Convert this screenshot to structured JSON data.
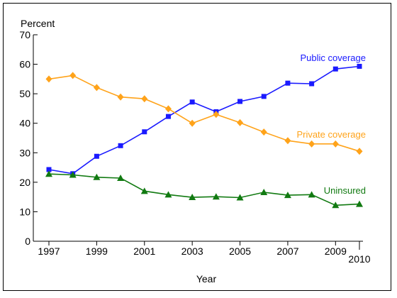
{
  "chart_data": {
    "type": "line",
    "ylabel": "Percent",
    "xlabel": "Year",
    "ylim": [
      0,
      70
    ],
    "yticks": [
      0,
      10,
      20,
      30,
      40,
      50,
      60,
      70
    ],
    "xlim": [
      1997,
      2010
    ],
    "xticks": [
      1997,
      1999,
      2001,
      2003,
      2005,
      2007,
      2009,
      2010
    ],
    "x": [
      1997,
      1998,
      1999,
      2000,
      2001,
      2002,
      2003,
      2004,
      2005,
      2006,
      2007,
      2008,
      2009,
      2010
    ],
    "grid": false,
    "series": [
      {
        "name": "Public coverage",
        "color": "#1a1aff",
        "marker": "square",
        "values": [
          24.3,
          22.9,
          28.8,
          32.4,
          37.1,
          42.3,
          47.2,
          43.9,
          47.4,
          49.1,
          53.6,
          53.4,
          58.4,
          59.3
        ]
      },
      {
        "name": "Private coverage",
        "color": "#ffa31a",
        "marker": "diamond",
        "values": [
          55.0,
          56.2,
          52.1,
          48.9,
          48.3,
          44.9,
          40.0,
          43.0,
          40.2,
          37.0,
          34.1,
          33.0,
          33.0,
          30.5
        ]
      },
      {
        "name": "Uninsured",
        "color": "#117a11",
        "marker": "triangle",
        "values": [
          22.8,
          22.5,
          21.7,
          21.4,
          17.0,
          15.8,
          14.9,
          15.1,
          14.8,
          16.6,
          15.6,
          15.8,
          12.2,
          12.6
        ]
      }
    ]
  }
}
